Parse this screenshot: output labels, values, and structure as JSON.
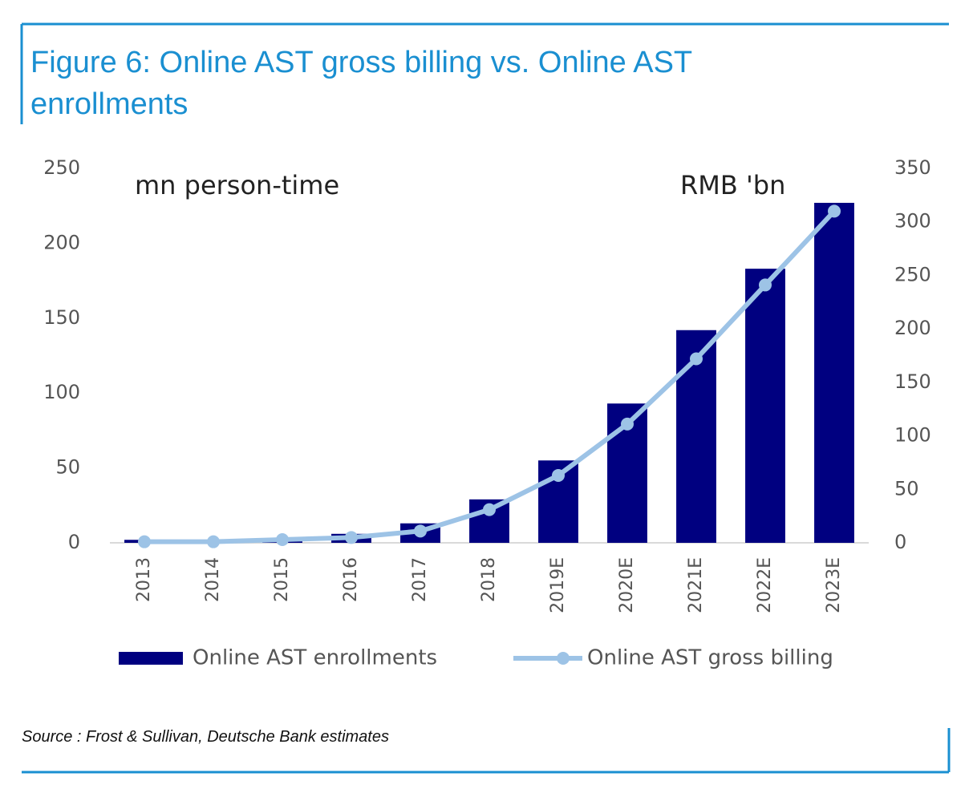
{
  "chart_data": {
    "type": "bar",
    "title": "Figure 6: Online AST gross billing vs. Online AST enrollments",
    "source": "Source : Frost & Sullivan, Deutsche Bank estimates",
    "annotations": [
      "mn person-time",
      "RMB 'bn"
    ],
    "categories": [
      "2013",
      "2014",
      "2015",
      "2016",
      "2017",
      "2018",
      "2019E",
      "2020E",
      "2021E",
      "2022E",
      "2023E"
    ],
    "series": [
      {
        "name": "Online AST enrollments",
        "type": "bar",
        "color": "#000080",
        "values": [
          2,
          1,
          2,
          6,
          13,
          29,
          55,
          93,
          142,
          183,
          227
        ]
      },
      {
        "name": "Online AST gross billing",
        "type": "line",
        "axis": "y2",
        "color": "#9dc3e6",
        "values": [
          1,
          1,
          3,
          5,
          11,
          31,
          63,
          111,
          172,
          241,
          310
        ]
      }
    ],
    "ylim": [
      0,
      250
    ],
    "yticks": [
      0,
      50,
      100,
      150,
      200,
      250
    ],
    "y2lim": [
      0,
      350
    ],
    "y2ticks": [
      0,
      50,
      100,
      150,
      200,
      250,
      300,
      350
    ]
  }
}
